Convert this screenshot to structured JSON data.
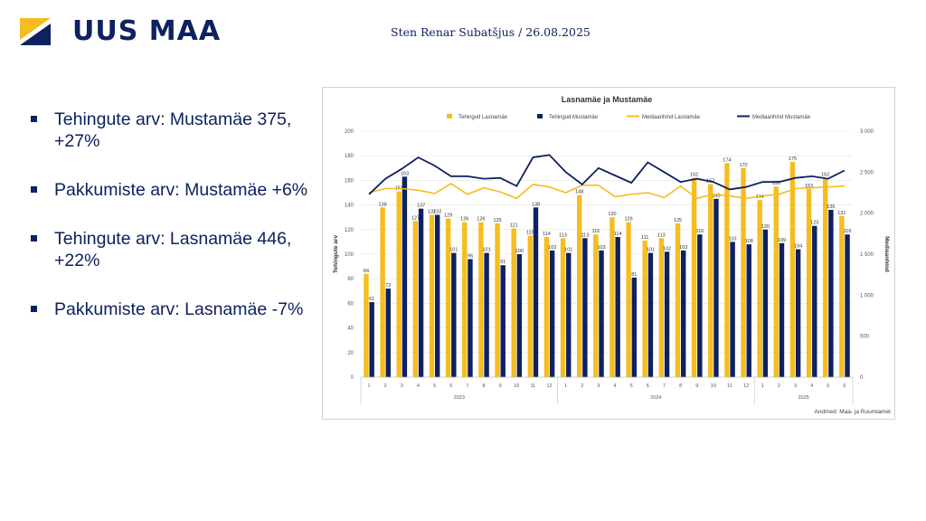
{
  "brand": {
    "logo_text": "UUS MAA",
    "colors": {
      "navy": "#0e2160",
      "gold": "#f5bd1f"
    }
  },
  "author_line": "Sten Renar Subatšjus / 26.08.2025",
  "bullets": [
    {
      "text": "Tehingute arv: Mustamäe 375, +27%"
    },
    {
      "text": "Pakkumiste arv: Mustamäe +6%"
    },
    {
      "text": "Tehingute arv: Lasnamäe 446, +22%"
    },
    {
      "text": "Pakkumiste arv: Lasnamäe -7%"
    }
  ],
  "chart_data": {
    "type": "bar",
    "title": "Lasnamäe ja Mustamäe",
    "ylabel": "Tehingute arv",
    "y2label": "Mediaanhind",
    "source_note": "Andmed: Maa- ja Ruumiamet",
    "ylim": [
      0,
      200
    ],
    "y2lim": [
      0,
      3000
    ],
    "yticks": [
      "0",
      "20",
      "40",
      "60",
      "80",
      "100",
      "120",
      "140",
      "160",
      "180",
      "200"
    ],
    "y2ticks": [
      "0",
      "500",
      "1 000",
      "1 500",
      "2 000",
      "2 500",
      "3 000"
    ],
    "categories": [
      "1",
      "2",
      "3",
      "4",
      "5",
      "6",
      "7",
      "8",
      "9",
      "10",
      "11",
      "12",
      "1",
      "2",
      "3",
      "4",
      "5",
      "6",
      "7",
      "8",
      "9",
      "10",
      "11",
      "12",
      "1",
      "2",
      "3",
      "4",
      "5",
      "6"
    ],
    "year_groups": [
      {
        "label": "2023",
        "start": 0,
        "count": 12
      },
      {
        "label": "2024",
        "start": 12,
        "count": 12
      },
      {
        "label": "2025",
        "start": 24,
        "count": 6
      }
    ],
    "grid": true,
    "legend_position": "top",
    "series": [
      {
        "name": "Tehingud Lasnamäe",
        "kind": "bar",
        "axis": "left",
        "color": "#f5bd1f",
        "values": [
          84,
          138,
          151,
          127,
          132,
          129,
          126,
          126,
          125,
          121,
          115,
          114,
          113,
          148,
          116,
          130,
          126,
          111,
          113,
          125,
          162,
          157,
          174,
          170,
          144,
          155,
          175,
          153,
          162,
          131
        ]
      },
      {
        "name": "Tehingud Mustamäe",
        "kind": "bar",
        "axis": "left",
        "color": "#0e2160",
        "values": [
          61,
          72,
          163,
          137,
          132,
          101,
          96,
          101,
          91,
          100,
          138,
          103,
          101,
          113,
          103,
          114,
          81,
          101,
          102,
          103,
          116,
          145,
          110,
          108,
          120,
          109,
          104,
          123,
          136,
          116
        ]
      },
      {
        "name": "Mediaanhind Lasnamäe",
        "kind": "line",
        "axis": "right",
        "color": "#f5bd1f",
        "values": [
          2250,
          2300,
          2300,
          2280,
          2240,
          2360,
          2230,
          2310,
          2260,
          2180,
          2350,
          2320,
          2250,
          2340,
          2340,
          2200,
          2230,
          2250,
          2190,
          2330,
          2180,
          2230,
          2210,
          2180,
          2210,
          2230,
          2300,
          2310,
          2320,
          2330
        ]
      },
      {
        "name": "Mediaanhind Mustamäe",
        "kind": "line",
        "axis": "right",
        "color": "#0e2160",
        "values": [
          2230,
          2420,
          2540,
          2680,
          2580,
          2450,
          2450,
          2420,
          2430,
          2330,
          2680,
          2710,
          2500,
          2350,
          2550,
          2460,
          2370,
          2620,
          2500,
          2380,
          2420,
          2380,
          2290,
          2320,
          2380,
          2380,
          2430,
          2450,
          2420,
          2520
        ]
      }
    ]
  }
}
